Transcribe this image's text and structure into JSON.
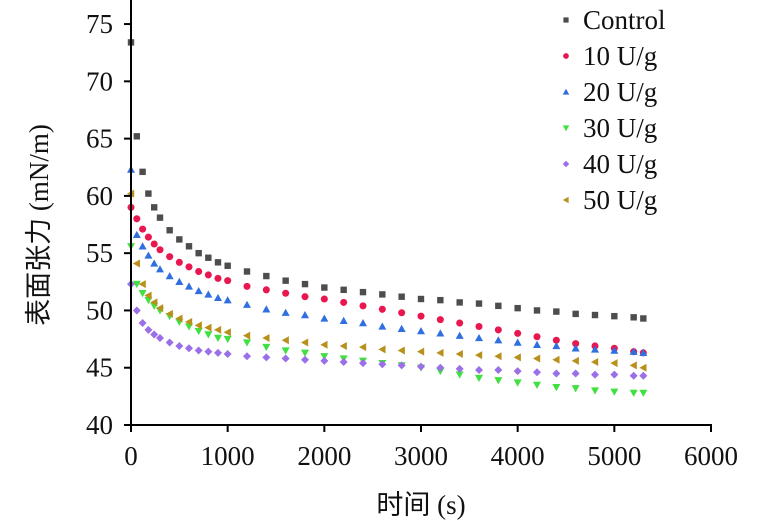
{
  "chart_data": {
    "type": "scatter",
    "xlabel": "时间 (s)",
    "ylabel": "表面张力 (mN/m)",
    "xlim": [
      0,
      6000
    ],
    "ylim": [
      40,
      77.1
    ],
    "xticks": [
      0,
      1000,
      2000,
      3000,
      4000,
      5000,
      6000
    ],
    "yticks": [
      40,
      45,
      50,
      55,
      60,
      65,
      70,
      75
    ],
    "grid": false,
    "legend_position": "top-right",
    "x": [
      0,
      60,
      120,
      180,
      240,
      300,
      400,
      500,
      600,
      700,
      800,
      900,
      1000,
      1200,
      1400,
      1600,
      1800,
      2000,
      2200,
      2400,
      2600,
      2800,
      3000,
      3200,
      3400,
      3600,
      3800,
      4000,
      4200,
      4400,
      4600,
      4800,
      5000,
      5200,
      5300
    ],
    "series": [
      {
        "name": "Control",
        "marker": "square",
        "color": "#4d4d4d",
        "values": [
          73.4,
          65.2,
          62.1,
          60.2,
          59.0,
          58.1,
          57.0,
          56.2,
          55.6,
          55.0,
          54.6,
          54.2,
          53.9,
          53.4,
          53.0,
          52.6,
          52.3,
          52.0,
          51.8,
          51.6,
          51.4,
          51.2,
          51.0,
          50.9,
          50.7,
          50.6,
          50.4,
          50.2,
          50.0,
          49.9,
          49.7,
          49.6,
          49.5,
          49.4,
          49.3
        ]
      },
      {
        "name": "10 U/g",
        "marker": "circle",
        "color": "#e8174f",
        "values": [
          59.0,
          58.0,
          57.1,
          56.4,
          55.8,
          55.3,
          54.7,
          54.2,
          53.8,
          53.4,
          53.1,
          52.8,
          52.6,
          52.1,
          51.8,
          51.5,
          51.2,
          51.0,
          50.7,
          50.4,
          50.1,
          49.8,
          49.5,
          49.2,
          48.9,
          48.6,
          48.3,
          48.0,
          47.7,
          47.4,
          47.1,
          46.9,
          46.7,
          46.4,
          46.3
        ]
      },
      {
        "name": "20 U/g",
        "marker": "triangle-up",
        "color": "#2f6fe0",
        "values": [
          62.3,
          56.6,
          55.6,
          54.8,
          54.1,
          53.6,
          53.0,
          52.5,
          52.1,
          51.7,
          51.4,
          51.1,
          50.9,
          50.5,
          50.1,
          49.8,
          49.6,
          49.3,
          49.1,
          48.9,
          48.6,
          48.4,
          48.2,
          48.0,
          47.8,
          47.6,
          47.4,
          47.2,
          47.0,
          46.9,
          46.7,
          46.6,
          46.5,
          46.4,
          46.3
        ]
      },
      {
        "name": "30 U/g",
        "marker": "triangle-down",
        "color": "#3fe03f",
        "values": [
          55.6,
          52.3,
          51.5,
          50.9,
          50.4,
          50.0,
          49.5,
          49.0,
          48.6,
          48.2,
          47.9,
          47.6,
          47.5,
          47.2,
          46.8,
          46.5,
          46.3,
          46.0,
          45.8,
          45.6,
          45.4,
          45.2,
          45.0,
          44.7,
          44.4,
          44.1,
          43.9,
          43.7,
          43.5,
          43.3,
          43.2,
          43.0,
          42.9,
          42.8,
          42.8
        ]
      },
      {
        "name": "40 U/g",
        "marker": "diamond",
        "color": "#9a6fe8",
        "values": [
          52.3,
          50.0,
          48.9,
          48.3,
          47.9,
          47.6,
          47.2,
          46.9,
          46.7,
          46.5,
          46.4,
          46.3,
          46.2,
          46.0,
          45.9,
          45.8,
          45.7,
          45.6,
          45.5,
          45.4,
          45.3,
          45.2,
          45.1,
          45.0,
          44.9,
          44.8,
          44.8,
          44.7,
          44.6,
          44.5,
          44.5,
          44.4,
          44.4,
          44.3,
          44.3
        ]
      },
      {
        "name": "50 U/g",
        "marker": "triangle-left",
        "color": "#b8901c",
        "values": [
          60.2,
          54.1,
          52.3,
          51.3,
          50.7,
          50.2,
          49.7,
          49.3,
          49.0,
          48.7,
          48.5,
          48.3,
          48.1,
          47.8,
          47.6,
          47.4,
          47.2,
          47.0,
          46.9,
          46.8,
          46.6,
          46.5,
          46.4,
          46.3,
          46.2,
          46.1,
          46.0,
          45.9,
          45.8,
          45.7,
          45.6,
          45.5,
          45.4,
          45.2,
          45.0
        ]
      }
    ]
  }
}
